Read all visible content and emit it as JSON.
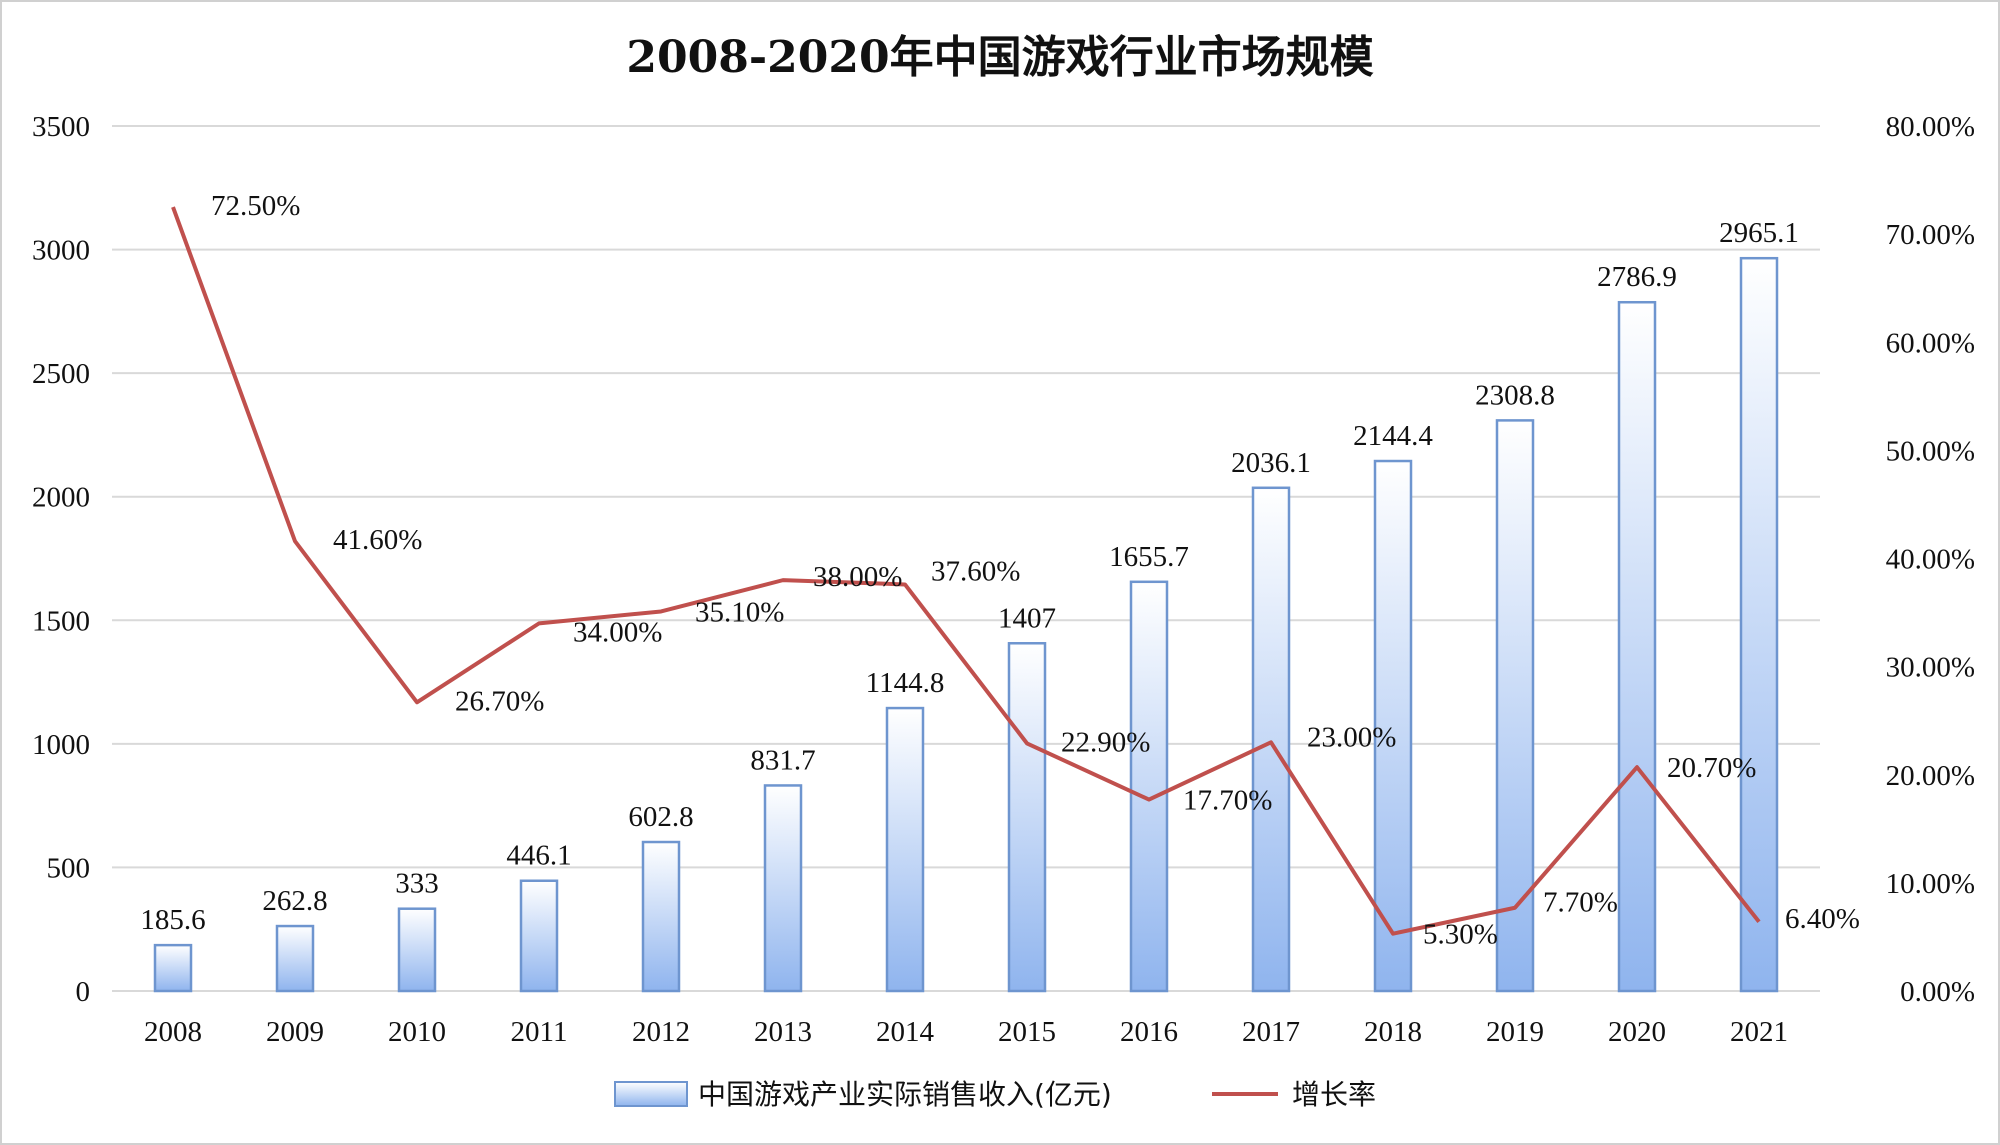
{
  "chart_data": {
    "type": "bar",
    "title": "2008-2020年中国游戏行业市场规模",
    "categories": [
      "2008",
      "2009",
      "2010",
      "2011",
      "2012",
      "2013",
      "2014",
      "2015",
      "2016",
      "2017",
      "2018",
      "2019",
      "2020",
      "2021"
    ],
    "series": [
      {
        "name": "中国游戏产业实际销售收入(亿元)",
        "type": "bar",
        "axis": "left",
        "values": [
          185.6,
          262.8,
          333,
          446.1,
          602.8,
          831.7,
          1144.8,
          1407,
          1655.7,
          2036.1,
          2144.4,
          2308.8,
          2786.9,
          2965.1
        ],
        "labels": [
          "185.6",
          "262.8",
          "333",
          "446.1",
          "602.8",
          "831.7",
          "1144.8",
          "1407",
          "1655.7",
          "2036.1",
          "2144.4",
          "2308.8",
          "2786.9",
          "2965.1"
        ]
      },
      {
        "name": "增长率",
        "type": "line",
        "axis": "right",
        "values": [
          72.5,
          41.6,
          26.7,
          34.0,
          35.1,
          38.0,
          37.6,
          22.9,
          17.7,
          23.0,
          5.3,
          7.7,
          20.7,
          6.4
        ],
        "labels": [
          "72.50%",
          "41.60%",
          "26.70%",
          "34.00%",
          "35.10%",
          "38.00%",
          "37.60%",
          "22.90%",
          "17.70%",
          "23.00%",
          "5.30%",
          "7.70%",
          "20.70%",
          "6.40%"
        ]
      }
    ],
    "y_left": {
      "min": 0,
      "max": 3500,
      "ticks": [
        "0",
        "500",
        "1000",
        "1500",
        "2000",
        "2500",
        "3000",
        "3500"
      ]
    },
    "y_right": {
      "min": 0,
      "max": 80,
      "ticks": [
        "0.00%",
        "10.00%",
        "20.00%",
        "30.00%",
        "40.00%",
        "50.00%",
        "60.00%",
        "70.00%",
        "80.00%"
      ]
    },
    "grid": true,
    "legend_position": "bottom",
    "colors": {
      "bar_top": "#ffffff",
      "bar_bottom": "#8fb4ee",
      "bar_border": "#6e95cf",
      "line": "#c0504d",
      "grid": "#d9d9d9"
    }
  }
}
